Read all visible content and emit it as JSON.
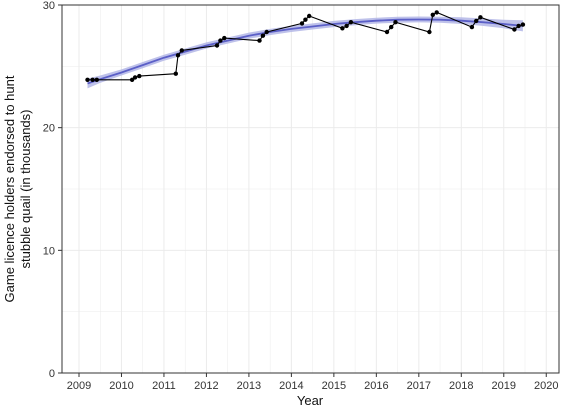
{
  "chart_data": {
    "type": "line",
    "title": "",
    "xlabel": "Year",
    "ylabel_lines": [
      "Game licence holders endorsed to hunt",
      "stubble quail (in thousands)"
    ],
    "xlim": [
      2008.6,
      2020.3
    ],
    "ylim": [
      0,
      30
    ],
    "x_ticks": [
      2009,
      2010,
      2011,
      2012,
      2013,
      2014,
      2015,
      2016,
      2017,
      2018,
      2019,
      2020
    ],
    "x_tick_labels": [
      "2009",
      "2010",
      "2011",
      "2012",
      "2013",
      "2014",
      "2015",
      "2016",
      "2017",
      "2018",
      "2019",
      "2020"
    ],
    "y_ticks": [
      0,
      10,
      20,
      30
    ],
    "y_tick_labels": [
      "0",
      "10",
      "20",
      "30"
    ],
    "grid": true,
    "colors": {
      "observed": "#000000",
      "trend": "#5b5fc7",
      "band": "#b3b6e6",
      "grid": "#ebebeb"
    },
    "series": [
      {
        "kind": "observed",
        "x": [
          2009.2,
          2009.32,
          2009.42,
          2010.25,
          2010.32,
          2010.42,
          2011.28,
          2011.33,
          2011.42,
          2012.25,
          2012.33,
          2012.42,
          2013.25,
          2013.33,
          2013.42,
          2014.25,
          2014.33,
          2014.42,
          2015.2,
          2015.3,
          2015.4,
          2016.25,
          2016.35,
          2016.45,
          2017.25,
          2017.33,
          2017.42,
          2018.25,
          2018.35,
          2018.45,
          2019.25,
          2019.35,
          2019.45
        ],
        "y": [
          23.9,
          23.9,
          23.9,
          23.9,
          24.1,
          24.2,
          24.4,
          25.9,
          26.3,
          26.7,
          27.1,
          27.3,
          27.1,
          27.5,
          27.8,
          28.5,
          28.8,
          29.1,
          28.1,
          28.3,
          28.6,
          27.8,
          28.2,
          28.6,
          27.8,
          29.2,
          29.4,
          28.2,
          28.7,
          29.0,
          28.0,
          28.3,
          28.4
        ]
      },
      {
        "kind": "trend",
        "x": [
          2009.2,
          2009.5,
          2010.0,
          2010.5,
          2011.0,
          2011.5,
          2012.0,
          2012.5,
          2013.0,
          2013.5,
          2014.0,
          2014.5,
          2015.0,
          2015.5,
          2016.0,
          2016.5,
          2017.0,
          2017.5,
          2018.0,
          2018.5,
          2019.0,
          2019.45
        ],
        "y": [
          23.6,
          23.95,
          24.5,
          25.1,
          25.7,
          26.2,
          26.7,
          27.1,
          27.5,
          27.8,
          28.05,
          28.25,
          28.45,
          28.6,
          28.72,
          28.8,
          28.82,
          28.8,
          28.72,
          28.6,
          28.45,
          28.3
        ],
        "lower": [
          23.2,
          23.65,
          24.25,
          24.85,
          25.45,
          25.95,
          26.45,
          26.85,
          27.25,
          27.55,
          27.8,
          28.0,
          28.2,
          28.35,
          28.48,
          28.55,
          28.58,
          28.55,
          28.45,
          28.3,
          28.1,
          27.85
        ],
        "upper": [
          24.0,
          24.25,
          24.75,
          25.35,
          25.95,
          26.45,
          26.95,
          27.35,
          27.75,
          28.05,
          28.3,
          28.5,
          28.7,
          28.85,
          28.96,
          29.05,
          29.06,
          29.05,
          29.0,
          28.9,
          28.8,
          28.75
        ]
      }
    ]
  }
}
